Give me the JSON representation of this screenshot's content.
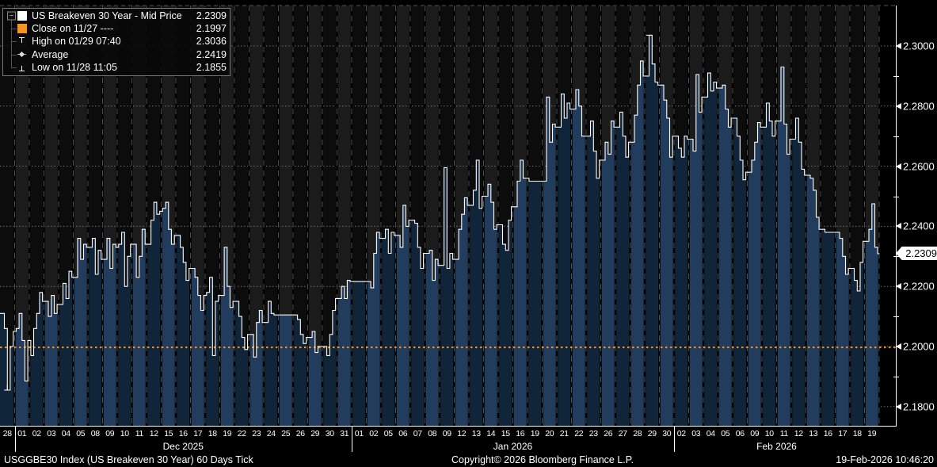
{
  "legend": {
    "rows": [
      {
        "icon": "series-swatch-white",
        "label": "US Breakeven 30 Year - Mid Price",
        "value": "2.2309"
      },
      {
        "icon": "close-line-swatch-orange",
        "label": "Close on 11/27 ----",
        "value": "2.1997"
      },
      {
        "icon": "high-marker",
        "label": "High on 01/29 07:40",
        "value": "2.3036"
      },
      {
        "icon": "average-marker",
        "label": "Average",
        "value": "2.2419"
      },
      {
        "icon": "low-marker",
        "label": "Low on 11/28 11:05",
        "value": "2.1855"
      }
    ]
  },
  "footer": {
    "left": "USGGBE30 Index (US Breakeven 30 Year) 60 Days Tick",
    "center": "Copyright© 2026 Bloomberg Finance L.P.",
    "right": "19-Feb-2026 10:46:20"
  },
  "y_axis": {
    "current_price_label": "2.2309",
    "labels": [
      {
        "value": 2.3,
        "label": "2.3000"
      },
      {
        "value": 2.28,
        "label": "2.2800"
      },
      {
        "value": 2.26,
        "label": "2.2600"
      },
      {
        "value": 2.24,
        "label": "2.2400"
      },
      {
        "value": 2.22,
        "label": "2.2200"
      },
      {
        "value": 2.2,
        "label": "2.2000"
      },
      {
        "value": 2.18,
        "label": "2.1800"
      }
    ],
    "minor_ticks": [
      2.29,
      2.27,
      2.25,
      2.23,
      2.21,
      2.19
    ]
  },
  "colors": {
    "accent_orange": "#f79320",
    "price_line": "#ffffff",
    "band_dark": "#0c0c0c",
    "band_light": "#1b1b1b",
    "fill_dark": "#10243a",
    "fill_light": "#213c5c",
    "gridline": "#6e6e6e",
    "separator": "#4f4f4f"
  },
  "chart_data": {
    "type": "line",
    "title": "US Breakeven 30 Year - Mid Price",
    "subtitle": "60 Days Tick intraday sessions, fill under price, alternating session shading",
    "ylim": [
      2.173,
      2.313
    ],
    "yticks": [
      2.18,
      2.2,
      2.22,
      2.24,
      2.26,
      2.28,
      2.3
    ],
    "grid": "horizontal dotted major lines; dashed vertical session separators",
    "legend_position": "top-left",
    "last_price": 2.2309,
    "previous_close": 2.1997,
    "high": 2.3036,
    "high_session_index": 44,
    "average": 2.2419,
    "low": 2.1855,
    "low_session_index": 0,
    "months": [
      {
        "label": "Dec 2025",
        "start_band": 1,
        "end_band": 23
      },
      {
        "label": "Jan 2026",
        "start_band": 24,
        "end_band": 45
      },
      {
        "label": "Feb 2026",
        "start_band": 46,
        "end_band": 59
      }
    ],
    "sessions": [
      {
        "day": "28",
        "path": [
          2.211,
          2.206,
          2.1855,
          2.2,
          2.205
        ]
      },
      {
        "day": "01",
        "path": [
          2.206,
          2.211,
          2.202,
          2.1885,
          2.202
        ]
      },
      {
        "day": "02",
        "path": [
          2.197,
          2.206,
          2.211,
          2.218,
          2.215
        ]
      },
      {
        "day": "03",
        "path": [
          2.215,
          2.21,
          2.217,
          2.211,
          2.214
        ]
      },
      {
        "day": "04",
        "path": [
          2.214,
          2.221,
          2.216,
          2.225,
          2.223
        ]
      },
      {
        "day": "05",
        "path": [
          2.223,
          2.236,
          2.229,
          2.234,
          2.233
        ]
      },
      {
        "day": "08",
        "path": [
          2.233,
          2.236,
          2.224,
          2.232,
          2.229
        ]
      },
      {
        "day": "09",
        "path": [
          2.229,
          2.236,
          2.226,
          2.234,
          2.233
        ]
      },
      {
        "day": "10",
        "path": [
          2.234,
          2.238,
          2.22,
          2.23,
          2.234
        ]
      },
      {
        "day": "11",
        "path": [
          2.234,
          2.223,
          2.23,
          2.239,
          2.234
        ]
      },
      {
        "day": "12",
        "path": [
          2.234,
          2.242,
          2.248,
          2.244,
          2.245
        ]
      },
      {
        "day": "15",
        "path": [
          2.246,
          2.248,
          2.239,
          2.234,
          2.237
        ]
      },
      {
        "day": "16",
        "path": [
          2.237,
          2.233,
          2.228,
          2.222,
          2.226
        ]
      },
      {
        "day": "17",
        "path": [
          2.226,
          2.223,
          2.217,
          2.212,
          2.217
        ]
      },
      {
        "day": "18",
        "path": [
          2.218,
          2.223,
          2.197,
          2.215,
          2.217
        ]
      },
      {
        "day": "19",
        "path": [
          2.217,
          2.233,
          2.22,
          2.213,
          2.215
        ]
      },
      {
        "day": "22",
        "path": [
          2.215,
          2.21,
          2.203,
          2.199,
          2.204
        ]
      },
      {
        "day": "23",
        "path": [
          2.204,
          2.1965,
          2.208,
          2.212,
          2.208
        ]
      },
      {
        "day": "24",
        "path": [
          2.208,
          2.215,
          2.211,
          2.2105,
          2.2105
        ]
      },
      {
        "day": "25",
        "path": [
          2.2105,
          2.2105,
          2.2105,
          2.2105,
          2.2105
        ]
      },
      {
        "day": "26",
        "path": [
          2.2105,
          2.209,
          2.204,
          2.201,
          2.203
        ]
      },
      {
        "day": "29",
        "path": [
          2.203,
          2.205,
          2.198,
          2.2,
          2.2
        ]
      },
      {
        "day": "30",
        "path": [
          2.2,
          2.197,
          2.204,
          2.212,
          2.216
        ]
      },
      {
        "day": "31",
        "path": [
          2.216,
          2.22,
          2.216,
          2.222,
          2.2216
        ]
      },
      {
        "day": "01",
        "path": [
          2.2216,
          2.2216,
          2.2216,
          2.2216,
          2.2216
        ]
      },
      {
        "day": "02",
        "path": [
          2.2216,
          2.2195,
          2.231,
          2.238,
          2.236
        ]
      },
      {
        "day": "05",
        "path": [
          2.236,
          2.239,
          2.231,
          2.238,
          2.237
        ]
      },
      {
        "day": "06",
        "path": [
          2.237,
          2.233,
          2.247,
          2.24,
          2.242
        ]
      },
      {
        "day": "07",
        "path": [
          2.242,
          2.241,
          2.233,
          2.226,
          2.231
        ]
      },
      {
        "day": "08",
        "path": [
          2.231,
          2.232,
          2.222,
          2.229,
          2.227
        ]
      },
      {
        "day": "09",
        "path": [
          2.227,
          2.2595,
          2.226,
          2.231,
          2.229
        ]
      },
      {
        "day": "12",
        "path": [
          2.229,
          2.239,
          2.244,
          2.2495,
          2.247
        ]
      },
      {
        "day": "13",
        "path": [
          2.247,
          2.252,
          2.262,
          2.246,
          2.25
        ]
      },
      {
        "day": "14",
        "path": [
          2.25,
          2.254,
          2.248,
          2.239,
          2.2405
        ]
      },
      {
        "day": "15",
        "path": [
          2.2405,
          2.234,
          2.232,
          2.242,
          2.2465
        ]
      },
      {
        "day": "16",
        "path": [
          2.2465,
          2.255,
          2.262,
          2.256,
          2.256
        ]
      },
      {
        "day": "19",
        "path": [
          2.255,
          2.255,
          2.255,
          2.255,
          2.255
        ]
      },
      {
        "day": "20",
        "path": [
          2.255,
          2.283,
          2.268,
          2.274,
          2.273
        ]
      },
      {
        "day": "21",
        "path": [
          2.273,
          2.284,
          2.276,
          2.281,
          2.279
        ]
      },
      {
        "day": "22",
        "path": [
          2.279,
          2.2855,
          2.28,
          2.27,
          2.27
        ]
      },
      {
        "day": "23",
        "path": [
          2.27,
          2.275,
          2.265,
          2.256,
          2.262
        ]
      },
      {
        "day": "26",
        "path": [
          2.262,
          2.268,
          2.264,
          2.275,
          2.273
        ]
      },
      {
        "day": "27",
        "path": [
          2.273,
          2.278,
          2.27,
          2.263,
          2.268
        ]
      },
      {
        "day": "28",
        "path": [
          2.268,
          2.277,
          2.287,
          2.295,
          2.29
        ]
      },
      {
        "day": "29",
        "path": [
          2.29,
          2.3036,
          2.294,
          2.288,
          2.287
        ]
      },
      {
        "day": "30",
        "path": [
          2.287,
          2.282,
          2.276,
          2.263,
          2.27
        ]
      },
      {
        "day": "02",
        "path": [
          2.27,
          2.266,
          2.263,
          2.27,
          2.269
        ]
      },
      {
        "day": "03",
        "path": [
          2.269,
          2.265,
          2.2905,
          2.278,
          2.283
        ]
      },
      {
        "day": "04",
        "path": [
          2.283,
          2.291,
          2.285,
          2.288,
          2.286
        ]
      },
      {
        "day": "05",
        "path": [
          2.286,
          2.287,
          2.279,
          2.273,
          2.276
        ]
      },
      {
        "day": "06",
        "path": [
          2.276,
          2.27,
          2.262,
          2.2555,
          2.258
        ]
      },
      {
        "day": "09",
        "path": [
          2.258,
          2.262,
          2.268,
          2.2745,
          2.273
        ]
      },
      {
        "day": "10",
        "path": [
          2.273,
          2.281,
          2.275,
          2.27,
          2.275
        ]
      },
      {
        "day": "11",
        "path": [
          2.275,
          2.293,
          2.274,
          2.264,
          2.269
        ]
      },
      {
        "day": "12",
        "path": [
          2.269,
          2.276,
          2.268,
          2.259,
          2.257
        ]
      },
      {
        "day": "13",
        "path": [
          2.257,
          2.256,
          2.252,
          2.243,
          2.239
        ]
      },
      {
        "day": "16",
        "path": [
          2.239,
          2.238,
          2.238,
          2.238,
          2.238
        ]
      },
      {
        "day": "17",
        "path": [
          2.238,
          2.236,
          2.23,
          2.224,
          2.226
        ]
      },
      {
        "day": "18",
        "path": [
          2.226,
          2.222,
          2.2185,
          2.228,
          2.235
        ]
      },
      {
        "day": "19",
        "path": [
          2.235,
          2.239,
          2.2475,
          2.233,
          2.2309
        ]
      }
    ]
  }
}
